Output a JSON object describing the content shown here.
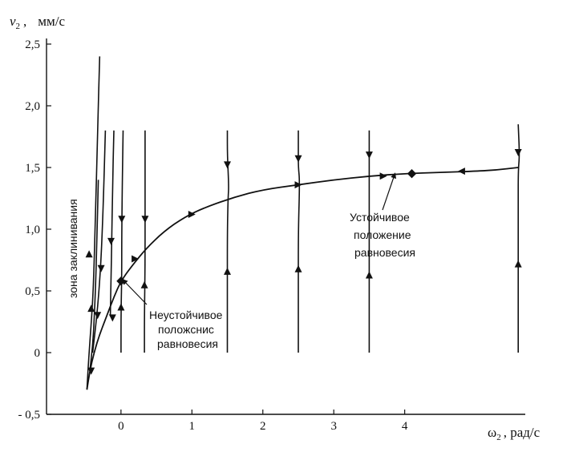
{
  "chart_data": {
    "type": "line",
    "title": "",
    "ylabel": "v₂,   мм/с",
    "ylabel_symbol": "v",
    "ylabel_subscript": "2",
    "ylabel_units": "мм/с",
    "xlabel": "ω₂ , рад/с",
    "xlabel_symbol": "ω",
    "xlabel_subscript": "2",
    "xlabel_units": ", рад/с",
    "y_ticks": [
      {
        "label": "2,5",
        "value": 2.5
      },
      {
        "label": "2,0",
        "value": 2.0
      },
      {
        "label": "1,5",
        "value": 1.5
      },
      {
        "label": "1,0",
        "value": 1.0
      },
      {
        "label": "0,5",
        "value": 0.5
      },
      {
        "label": "0",
        "value": 0.0
      },
      {
        "label": "- 0,5",
        "value": -0.5
      }
    ],
    "x_ticks": [
      {
        "label": "0",
        "value": 0
      },
      {
        "label": "1",
        "value": 1
      },
      {
        "label": "2",
        "value": 2
      },
      {
        "label": "3",
        "value": 3
      },
      {
        "label": "4",
        "value": 4
      }
    ],
    "xlim": [
      -1.05,
      5.7
    ],
    "ylim": [
      -0.5,
      2.5
    ],
    "separatrix": {
      "name": "main-curve",
      "x": [
        -0.48,
        -0.44,
        -0.38,
        -0.3,
        -0.2,
        -0.1,
        0.0,
        0.15,
        0.35,
        0.6,
        0.9,
        1.2,
        1.6,
        2.0,
        2.5,
        3.0,
        3.5,
        4.0,
        4.5,
        5.0,
        5.3,
        5.6
      ],
      "y": [
        -0.3,
        -0.15,
        0.0,
        0.15,
        0.3,
        0.45,
        0.58,
        0.7,
        0.84,
        0.98,
        1.1,
        1.18,
        1.26,
        1.32,
        1.36,
        1.4,
        1.43,
        1.45,
        1.46,
        1.47,
        1.48,
        1.5
      ]
    },
    "lines": [
      {
        "name": "left-spike",
        "x": [
          -0.48,
          -0.45,
          -0.4,
          -0.38,
          -0.36,
          -0.33,
          -0.3
        ],
        "y": [
          -0.3,
          0.0,
          0.4,
          0.7,
          1.1,
          1.8,
          2.4
        ]
      },
      {
        "name": "trajectory-1",
        "x": [
          -0.44,
          -0.4,
          -0.38,
          -0.36,
          -0.34,
          -0.32
        ],
        "y": [
          -0.15,
          0.05,
          0.25,
          0.5,
          0.9,
          1.4
        ]
      },
      {
        "name": "trajectory-2",
        "x": [
          -0.4,
          -0.33,
          -0.28,
          -0.25,
          -0.22
        ],
        "y": [
          0.0,
          0.35,
          0.75,
          1.2,
          1.8
        ]
      },
      {
        "name": "trajectory-3",
        "x": [
          -0.15,
          -0.14,
          -0.13,
          -0.12,
          -0.1
        ],
        "y": [
          0.3,
          0.6,
          0.9,
          1.3,
          1.8
        ]
      },
      {
        "name": "trajectory-4",
        "x": [
          0.0,
          0.0,
          0.01,
          0.01,
          0.03
        ],
        "y": [
          0.0,
          0.3,
          0.6,
          1.0,
          1.8
        ]
      },
      {
        "name": "trajectory-5",
        "x": [
          0.33,
          0.33,
          0.34,
          0.34,
          0.34
        ],
        "y": [
          0.0,
          0.3,
          0.7,
          1.1,
          1.8
        ]
      },
      {
        "name": "trajectory-6",
        "x": [
          1.5,
          1.5,
          1.5,
          1.51,
          1.52,
          1.5,
          1.5
        ],
        "y": [
          0.0,
          0.5,
          1.0,
          1.26,
          1.35,
          1.6,
          1.8
        ]
      },
      {
        "name": "trajectory-7",
        "x": [
          2.5,
          2.5,
          2.5,
          2.52,
          2.5,
          2.5,
          2.5
        ],
        "y": [
          0.0,
          0.5,
          1.0,
          1.39,
          1.5,
          1.65,
          1.8
        ]
      },
      {
        "name": "trajectory-8",
        "x": [
          3.5,
          3.5,
          3.5,
          3.5,
          3.5,
          3.5
        ],
        "y": [
          0.0,
          0.5,
          1.0,
          1.45,
          1.6,
          1.8
        ]
      },
      {
        "name": "trajectory-9",
        "x": [
          5.6,
          5.6,
          5.6,
          5.6,
          5.62,
          5.6
        ],
        "y": [
          0.0,
          0.6,
          1.2,
          1.47,
          1.6,
          1.85
        ]
      }
    ],
    "arrows": [
      {
        "x": -0.45,
        "y": 0.8,
        "dir": "up"
      },
      {
        "x": -0.42,
        "y": 0.36,
        "dir": "up"
      },
      {
        "x": -0.42,
        "y": -0.15,
        "dir": "down"
      },
      {
        "x": -0.28,
        "y": 0.68,
        "dir": "down"
      },
      {
        "x": -0.33,
        "y": 0.3,
        "dir": "down"
      },
      {
        "x": -0.14,
        "y": 0.9,
        "dir": "down"
      },
      {
        "x": 0.01,
        "y": 1.08,
        "dir": "down"
      },
      {
        "x": 0.0,
        "y": 0.37,
        "dir": "up"
      },
      {
        "x": 0.34,
        "y": 1.08,
        "dir": "down"
      },
      {
        "x": 0.33,
        "y": 0.55,
        "dir": "up"
      },
      {
        "x": 1.5,
        "y": 1.52,
        "dir": "down"
      },
      {
        "x": 1.5,
        "y": 0.66,
        "dir": "up"
      },
      {
        "x": 2.5,
        "y": 1.57,
        "dir": "down"
      },
      {
        "x": 2.5,
        "y": 0.68,
        "dir": "up"
      },
      {
        "x": 3.5,
        "y": 1.6,
        "dir": "down"
      },
      {
        "x": 3.5,
        "y": 0.63,
        "dir": "up"
      },
      {
        "x": 5.6,
        "y": 1.62,
        "dir": "down"
      },
      {
        "x": 5.6,
        "y": 0.72,
        "dir": "up"
      },
      {
        "x": 0.2,
        "y": 0.76,
        "dir": "right"
      },
      {
        "x": 1.0,
        "y": 1.12,
        "dir": "right"
      },
      {
        "x": 2.5,
        "y": 1.36,
        "dir": "right"
      },
      {
        "x": 3.7,
        "y": 1.43,
        "dir": "right"
      },
      {
        "x": 4.8,
        "y": 1.47,
        "dir": "left"
      },
      {
        "x": -0.12,
        "y": 0.28,
        "dir": "down"
      }
    ],
    "equilibria": [
      {
        "name": "unstable-equilibrium",
        "x": 0.0,
        "y": 0.58
      },
      {
        "name": "stable-equilibrium",
        "x": 4.1,
        "y": 1.45
      }
    ],
    "annotations": {
      "lock_zone": "зона заклинивания",
      "stable_lines": [
        "Устойчивое",
        "положение",
        "равновесия"
      ],
      "unstable_lines": [
        "Неустойчивое",
        "положснис",
        "равновесия"
      ]
    }
  }
}
